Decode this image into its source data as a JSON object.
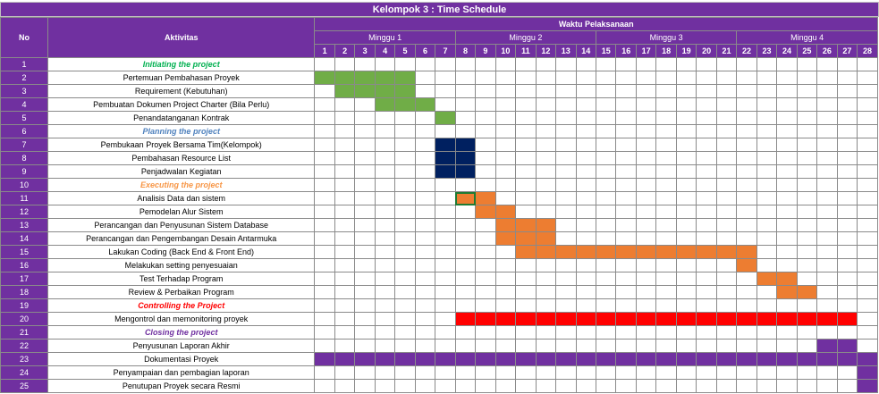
{
  "title": "Kelompok 3 : Time Schedule",
  "headers": {
    "no": "No",
    "aktivitas": "Aktivitas",
    "waktu": "Waktu Pelaksanaan",
    "weeks": [
      "Minggu 1",
      "Minggu 2",
      "Minggu 3",
      "Minggu 4"
    ],
    "days": [
      "1",
      "2",
      "3",
      "4",
      "5",
      "6",
      "7",
      "8",
      "9",
      "10",
      "11",
      "12",
      "13",
      "14",
      "15",
      "16",
      "17",
      "18",
      "19",
      "20",
      "21",
      "22",
      "23",
      "24",
      "25",
      "26",
      "27",
      "28"
    ]
  },
  "colors": {
    "header_purple": "#7030a0",
    "green": "#70ad47",
    "navy": "#002060",
    "orange": "#ed7d31",
    "red": "#ff0000",
    "purple_bar": "#7030a0",
    "phase_initiating": "#00b050",
    "phase_planning": "#4f81bd",
    "phase_executing": "#f79646",
    "phase_controlling": "#ff0000",
    "phase_closing": "#7030a0"
  },
  "rows": [
    {
      "no": "1",
      "label": "Initiating the project",
      "phase": "initiating",
      "start": 0,
      "end": 0,
      "color": ""
    },
    {
      "no": "2",
      "label": "Pertemuan Pembahasan Proyek",
      "phase": "",
      "start": 1,
      "end": 5,
      "color": "green"
    },
    {
      "no": "3",
      "label": "Requirement (Kebutuhan)",
      "phase": "",
      "start": 2,
      "end": 5,
      "color": "green"
    },
    {
      "no": "4",
      "label": "Pembuatan Dokumen Project Charter (Bila Perlu)",
      "phase": "",
      "start": 4,
      "end": 6,
      "color": "green"
    },
    {
      "no": "5",
      "label": "Penandatanganan Kontrak",
      "phase": "",
      "start": 7,
      "end": 7,
      "color": "green"
    },
    {
      "no": "6",
      "label": "Planning the project",
      "phase": "planning",
      "start": 0,
      "end": 0,
      "color": ""
    },
    {
      "no": "7",
      "label": "Pembukaan Proyek Bersama Tim(Kelompok)",
      "phase": "",
      "start": 7,
      "end": 8,
      "color": "navy"
    },
    {
      "no": "8",
      "label": "Pembahasan Resource List",
      "phase": "",
      "start": 7,
      "end": 8,
      "color": "navy"
    },
    {
      "no": "9",
      "label": "Penjadwalan Kegiatan",
      "phase": "",
      "start": 7,
      "end": 8,
      "color": "navy"
    },
    {
      "no": "10",
      "label": "Executing the project",
      "phase": "executing",
      "start": 0,
      "end": 0,
      "color": ""
    },
    {
      "no": "11",
      "label": "Analisis Data dan sistem",
      "phase": "",
      "start": 8,
      "end": 9,
      "color": "orange"
    },
    {
      "no": "12",
      "label": "Pemodelan Alur Sistem",
      "phase": "",
      "start": 9,
      "end": 10,
      "color": "orange"
    },
    {
      "no": "13",
      "label": "Perancangan dan Penyusunan Sistem Database",
      "phase": "",
      "start": 10,
      "end": 12,
      "color": "orange"
    },
    {
      "no": "14",
      "label": "Perancangan dan Pengembangan Desain Antarmuka",
      "phase": "",
      "start": 10,
      "end": 12,
      "color": "orange"
    },
    {
      "no": "15",
      "label": "Lakukan Coding (Back End & Front End)",
      "phase": "",
      "start": 11,
      "end": 22,
      "color": "orange"
    },
    {
      "no": "16",
      "label": "Melakukan setting penyesuaian",
      "phase": "",
      "start": 22,
      "end": 22,
      "color": "orange"
    },
    {
      "no": "17",
      "label": "Test Terhadap Program",
      "phase": "",
      "start": 23,
      "end": 24,
      "color": "orange"
    },
    {
      "no": "18",
      "label": "Review & Perbaikan Program",
      "phase": "",
      "start": 24,
      "end": 25,
      "color": "orange"
    },
    {
      "no": "19",
      "label": "Controlling the Project",
      "phase": "controlling",
      "start": 0,
      "end": 0,
      "color": ""
    },
    {
      "no": "20",
      "label": "Mengontrol dan memonitoring proyek",
      "phase": "",
      "start": 8,
      "end": 27,
      "color": "red"
    },
    {
      "no": "21",
      "label": "Closing the project",
      "phase": "closing",
      "start": 0,
      "end": 0,
      "color": ""
    },
    {
      "no": "22",
      "label": "Penyusunan Laporan Akhir",
      "phase": "",
      "start": 26,
      "end": 27,
      "color": "purple_bar"
    },
    {
      "no": "23",
      "label": "Dokumentasi Proyek",
      "phase": "",
      "start": 1,
      "end": 28,
      "color": "purple_bar"
    },
    {
      "no": "24",
      "label": "Penyampaian dan pembagian laporan",
      "phase": "",
      "start": 28,
      "end": 28,
      "color": "purple_bar"
    },
    {
      "no": "25",
      "label": "Penutupan Proyek secara Resmi",
      "phase": "",
      "start": 28,
      "end": 28,
      "color": "purple_bar"
    }
  ],
  "selected_cell": {
    "row": "11",
    "day": "8"
  }
}
